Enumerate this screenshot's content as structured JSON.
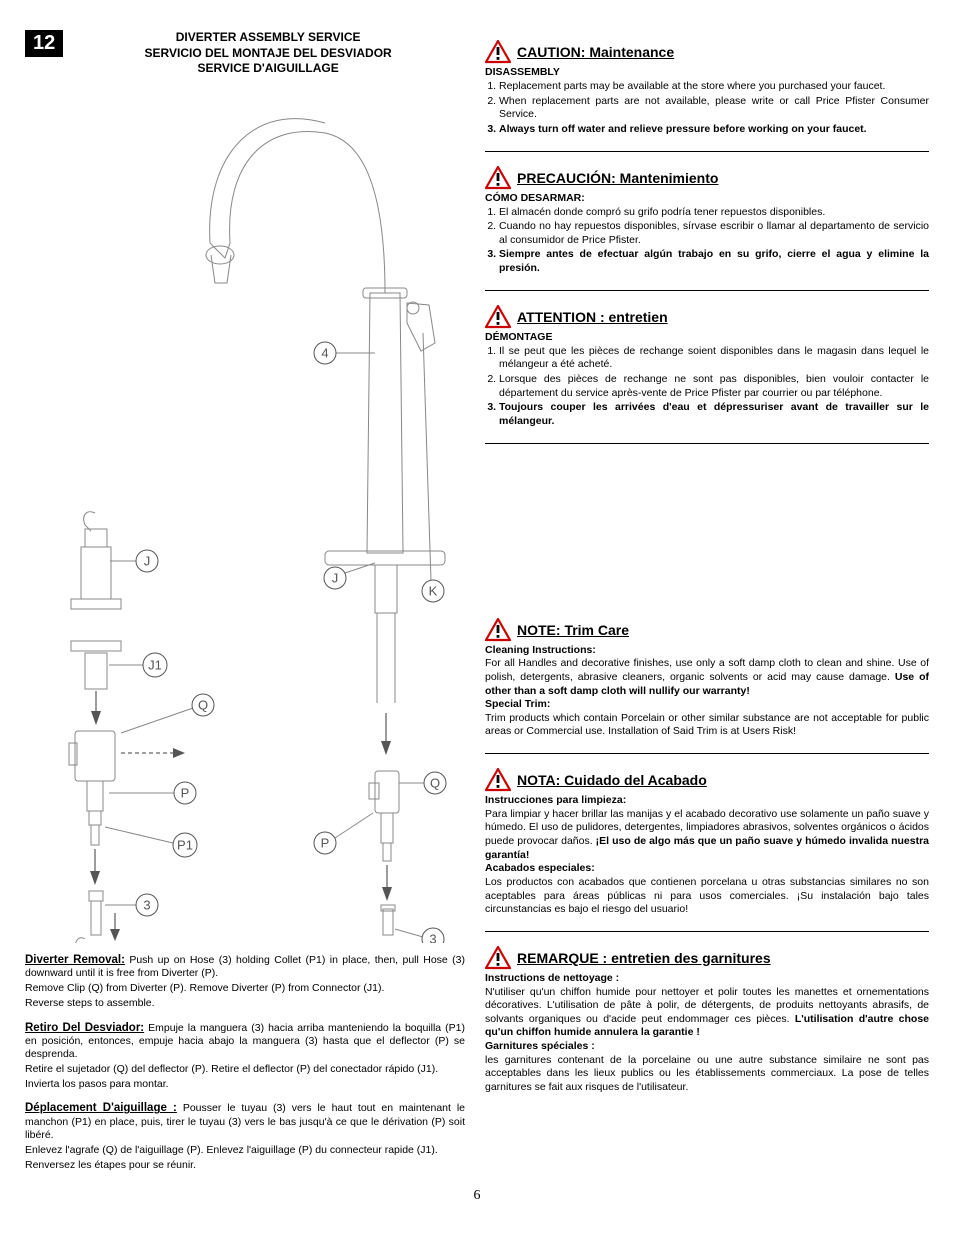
{
  "page_number": "6",
  "step": {
    "number": "12",
    "title_en": "DIVERTER ASSEMBLY SERVICE",
    "title_es": "SERVICIO DEL MONTAJE DEL DESVIADOR",
    "title_fr": "SERVICE D'AIGUILLAGE"
  },
  "diagram": {
    "callouts": [
      "J",
      "J",
      "K",
      "J1",
      "Q",
      "P",
      "Q",
      "P",
      "P1",
      "3",
      "3",
      "4"
    ],
    "callout_circle_radius": 11,
    "callout_font_size": 13,
    "line_color": "#888",
    "accent_color": "#555"
  },
  "left_sections": [
    {
      "heading": "Diverter Removal:",
      "lines": [
        "Push up on Hose (3) holding Collet (P1) in place, then, pull Hose (3) downward until it is free from Diverter (P).",
        "Remove Clip (Q) from Diverter (P).  Remove Diverter (P) from Connector (J1).",
        "Reverse steps to assemble."
      ]
    },
    {
      "heading": "Retiro Del Desviador:",
      "lines": [
        "Empuje la manguera (3) hacia arriba manteniendo la boquilla (P1) en posición, entonces, empuje hacia abajo  la manguera (3) hasta que el deflector (P) se desprenda.",
        "Retire el sujetador (Q) del deflector (P).  Retire el deflector (P) del conectador rápido (J1).",
        "Invierta los pasos para montar."
      ]
    },
    {
      "heading": "Déplacement D'aiguillage :",
      "lines": [
        "Pousser le tuyau (3) vers le haut tout en maintenant le manchon (P1) en place, puis, tirer le tuyau (3) vers le bas jusqu'à ce que le dérivation (P) soit libéré.",
        "Enlevez l'agrafe (Q) de l'aiguillage (P). Enlevez l'aiguillage (P) du connecteur rapide (J1).",
        "Renversez les étapes pour se réunir."
      ]
    }
  ],
  "right_maintenance": [
    {
      "title": "CAUTION:  Maintenance",
      "subheading": "DISASSEMBLY",
      "items": [
        {
          "text": "Replacement parts may be available at the store where you purchased your faucet.",
          "bold": false
        },
        {
          "text": "When replacement parts are not available, please write or call Price Pfister Consumer Service.",
          "bold": false
        },
        {
          "text": "Always turn off water and relieve pressure before working on your faucet.",
          "bold": true
        }
      ]
    },
    {
      "title": " PRECAUCIÓN: Mantenimiento",
      "subheading": "CÓMO DESARMAR:",
      "items": [
        {
          "text": "El almacén donde compró su grifo podría tener repuestos disponibles.",
          "bold": false
        },
        {
          "text": "Cuando no hay repuestos disponibles, sírvase escribir o llamar al departamento de servicio al consumidor de Price Pfister.",
          "bold": false
        },
        {
          "text": "Siempre antes de efectuar algún trabajo en su grifo, cierre el agua y elimine la presión.",
          "bold": true
        }
      ]
    },
    {
      "title": " ATTENTION : entretien",
      "subheading": "DÉMONTAGE",
      "items": [
        {
          "text": "Il se peut que les pièces de rechange soient disponibles dans le magasin dans lequel le mélangeur a été acheté.",
          "bold": false
        },
        {
          "text": "Lorsque des pièces de rechange ne sont pas disponibles, bien vouloir contacter le département du service après-vente de Price Pfister par courrier ou par téléphone.",
          "bold": false
        },
        {
          "text": "Toujours couper les arrivées d'eau et dépressuriser avant de travailler sur le mélangeur.",
          "bold": true
        }
      ]
    }
  ],
  "right_trim": [
    {
      "title": "NOTE:  Trim Care",
      "sub1": "Cleaning Instructions:",
      "body1_pre": "For all Handles and decorative finishes, use only a soft damp cloth to clean and shine.  Use of polish, detergents, abrasive cleaners, organic solvents or acid may cause damage.  ",
      "body1_bold": "Use of other than a soft damp cloth will nullify our warranty!",
      "sub2": "Special Trim:",
      "body2": "Trim products which contain Porcelain or other similar substance are not acceptable for public areas or Commercial use.  Installation of Said Trim is at Users Risk!"
    },
    {
      "title": " NOTA: Cuidado del Acabado",
      "sub1": "Instrucciones para limpieza:",
      "body1_pre": "Para limpiar y hacer brillar las manijas y el acabado decorativo use solamente un paño suave y húmedo. El uso de pulidores, detergentes, limpiadores abrasivos, solventes orgánicos o ácidos puede provocar daños. ",
      "body1_bold": "¡El uso de algo más que un paño suave y húmedo invalida nuestra garantía!",
      "sub2": "Acabados especiales:",
      "body2": "Los productos con acabados que contienen porcelana u otras substancias similares no son aceptables para áreas públicas ni para usos comerciales. ¡Su instalación bajo tales circunstancias es bajo el riesgo del usuario!"
    },
    {
      "title": " REMARQUE : entretien des garnitures",
      "sub1": "Instructions de nettoyage :",
      "body1_pre": "N'utiliser qu'un chiffon humide pour nettoyer et polir toutes les manettes et ornementations décoratives. L'utilisation de pâte à polir, de détergents, de produits nettoyants abrasifs, de solvants organiques ou d'acide peut endommager ces pièces. ",
      "body1_bold": "L'utilisation d'autre chose qu'un chiffon humide annulera la garantie !",
      "sub2": "Garnitures spéciales :",
      "body2": " les garnitures contenant de la porcelaine ou une autre substance similaire ne sont pas acceptables dans les lieux publics ou les établissements commerciaux. La pose de telles garnitures se fait aux risques de l'utilisateur."
    }
  ]
}
